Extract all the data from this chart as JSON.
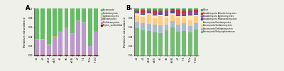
{
  "panel_A": {
    "categories": [
      "s1",
      "s2",
      "s3/4",
      "s4/5",
      "s5",
      "s6",
      "s6/8",
      "s7",
      "T1",
      "T2a",
      "T1/2"
    ],
    "legend_labels": [
      "Phylum_unidentified",
      "Dothideomycetes",
      "Blastomycetes",
      "Glyphaeomycota",
      "Sordariomycota",
      "Ascomycota"
    ],
    "colors": [
      "#7B2020",
      "#CC99AA",
      "#BB99CC",
      "#CCCC88",
      "#99CC99",
      "#66BB66"
    ],
    "data": [
      [
        0.012,
        0.012,
        0.012,
        0.012,
        0.012,
        0.012,
        0.012,
        0.012,
        0.012,
        0.012,
        0.012
      ],
      [
        0.008,
        0.008,
        0.008,
        0.008,
        0.008,
        0.008,
        0.008,
        0.008,
        0.008,
        0.008,
        0.008
      ],
      [
        0.31,
        0.31,
        0.2,
        0.37,
        0.47,
        0.57,
        0.44,
        0.71,
        0.68,
        0.18,
        0.47
      ],
      [
        0.005,
        0.005,
        0.005,
        0.005,
        0.005,
        0.005,
        0.005,
        0.005,
        0.005,
        0.005,
        0.005
      ],
      [
        0.005,
        0.005,
        0.005,
        0.005,
        0.005,
        0.005,
        0.005,
        0.005,
        0.005,
        0.005,
        0.005
      ],
      [
        0.66,
        0.66,
        0.77,
        0.6,
        0.5,
        0.4,
        0.54,
        0.27,
        0.3,
        0.8,
        0.5
      ]
    ],
    "ylabel": "Relative abundance",
    "ylim": [
      0,
      1.0
    ],
    "yticks": [
      0.0,
      0.2,
      0.4,
      0.6,
      0.8,
      1.0
    ]
  },
  "panel_B": {
    "categories": [
      "s1",
      "s2",
      "s3/4",
      "s4/5",
      "s5",
      "s6",
      "s6/8",
      "s7",
      "T1",
      "T2a",
      "T1/2"
    ],
    "legend_labels": [
      "Ascomycota Botryosphaeriaceae",
      "Ascomycota Dothideomycetes",
      "Ascomycota Sordariomycetes",
      "Ascomycota Eurotiomycetes",
      "Basidiomycota Malasseziomycetes",
      "Basidiomycota Agaricomycetes",
      "Basidiomycota Atractiellomycetes",
      "Other"
    ],
    "colors": [
      "#77BB77",
      "#AABBCC",
      "#FFCC88",
      "#FFEEAA",
      "#3355AA",
      "#994499",
      "#CC3333",
      "#44AA55"
    ],
    "data": [
      [
        0.58,
        0.53,
        0.52,
        0.49,
        0.47,
        0.53,
        0.59,
        0.5,
        0.52,
        0.49,
        0.55
      ],
      [
        0.13,
        0.16,
        0.15,
        0.16,
        0.17,
        0.13,
        0.14,
        0.16,
        0.16,
        0.13,
        0.13
      ],
      [
        0.14,
        0.13,
        0.19,
        0.14,
        0.19,
        0.14,
        0.13,
        0.14,
        0.12,
        0.12,
        0.15
      ],
      [
        0.04,
        0.05,
        0.04,
        0.06,
        0.04,
        0.04,
        0.04,
        0.04,
        0.04,
        0.11,
        0.04
      ],
      [
        0.01,
        0.01,
        0.01,
        0.01,
        0.04,
        0.01,
        0.04,
        0.01,
        0.01,
        0.01,
        0.01
      ],
      [
        0.03,
        0.03,
        0.03,
        0.03,
        0.03,
        0.08,
        0.02,
        0.03,
        0.05,
        0.07,
        0.04
      ],
      [
        0.03,
        0.06,
        0.02,
        0.07,
        0.02,
        0.03,
        0.02,
        0.09,
        0.06,
        0.03,
        0.05
      ],
      [
        0.04,
        0.03,
        0.04,
        0.04,
        0.04,
        0.04,
        0.02,
        0.03,
        0.04,
        0.04,
        0.03
      ]
    ],
    "ylabel": "Relative abundance",
    "ylim": [
      0,
      1.0
    ],
    "yticks": [
      0.0,
      0.2,
      0.4,
      0.6,
      0.8,
      1.0
    ]
  },
  "fig_width": 4.0,
  "fig_height": 1.01,
  "dpi": 100,
  "bg_color": "#f0f0eb"
}
